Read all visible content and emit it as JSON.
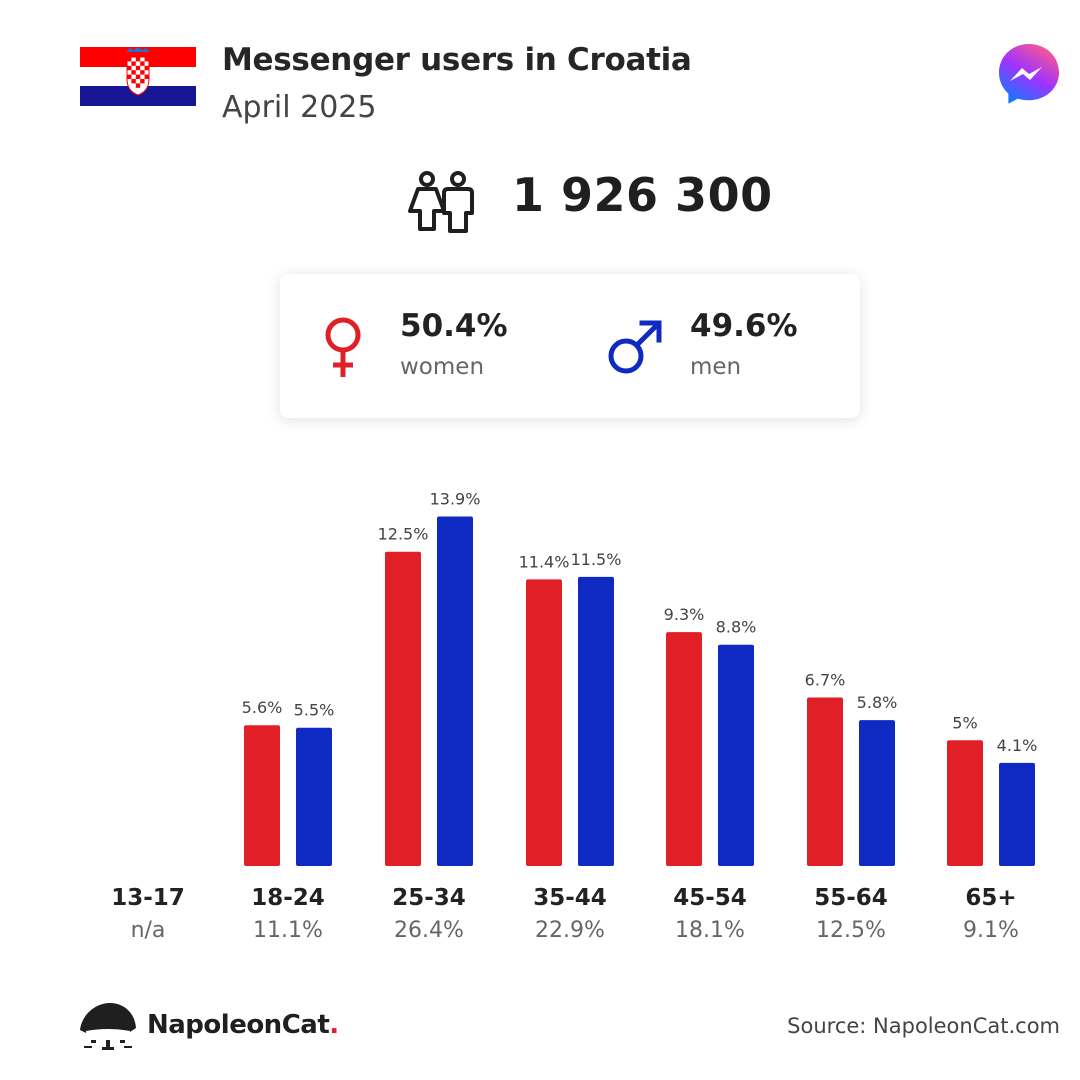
{
  "header": {
    "title": "Messenger users in Croatia",
    "subtitle": "April 2025",
    "flag_icon": "croatia-flag-icon",
    "app_icon": "messenger-icon"
  },
  "total": {
    "icon": "users-icon",
    "value": "1 926 300"
  },
  "gender": {
    "women": {
      "pct": "50.4%",
      "label": "women",
      "icon": "female-symbol-icon"
    },
    "men": {
      "pct": "49.6%",
      "label": "men",
      "icon": "male-symbol-icon"
    }
  },
  "colors": {
    "women": "#e01f26",
    "men": "#0f2ac2",
    "text": "#222222",
    "muted": "#666666"
  },
  "chart_data": {
    "type": "bar",
    "categories": [
      "13-17",
      "18-24",
      "25-34",
      "35-44",
      "45-54",
      "55-64",
      "65+"
    ],
    "category_totals": [
      "n/a",
      "11.1%",
      "26.4%",
      "22.9%",
      "18.1%",
      "12.5%",
      "9.1%"
    ],
    "series": [
      {
        "name": "women",
        "values": [
          null,
          5.6,
          12.5,
          11.4,
          9.3,
          6.7,
          5.0
        ],
        "labels": [
          "",
          "5.6%",
          "12.5%",
          "11.4%",
          "9.3%",
          "6.7%",
          "5%"
        ]
      },
      {
        "name": "men",
        "values": [
          null,
          5.5,
          13.9,
          11.5,
          8.8,
          5.8,
          4.1
        ],
        "labels": [
          "",
          "5.5%",
          "13.9%",
          "11.5%",
          "8.8%",
          "5.8%",
          "4.1%"
        ]
      }
    ],
    "ylim": [
      0,
      14
    ]
  },
  "footer": {
    "brand": "NapoleonCat",
    "brand_dot": ".",
    "logo_icon": "napoleoncat-logo-icon",
    "source": "Source: NapoleonCat.com"
  }
}
